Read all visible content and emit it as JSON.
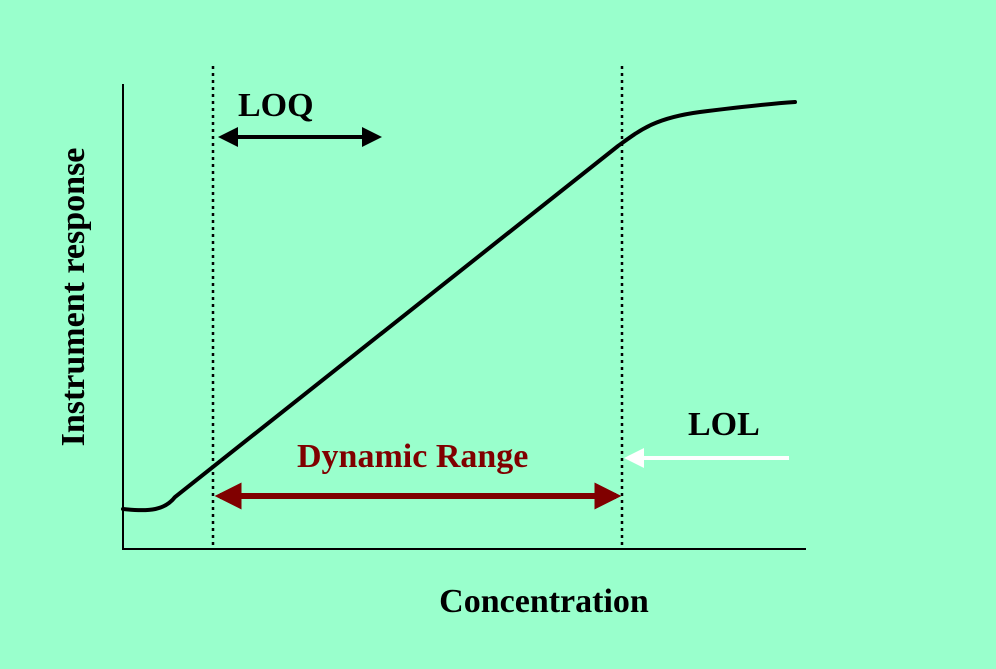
{
  "labels": {
    "y_axis": "Instrument response",
    "x_axis": "Concentration",
    "loq": "LOQ",
    "lol": "LOL",
    "dynamic_range": "Dynamic Range"
  },
  "colors": {
    "background": "#99FFCC",
    "curve": "#000000",
    "dynamic_range": "#800000",
    "lol_arrow": "#FFFFFF"
  }
}
